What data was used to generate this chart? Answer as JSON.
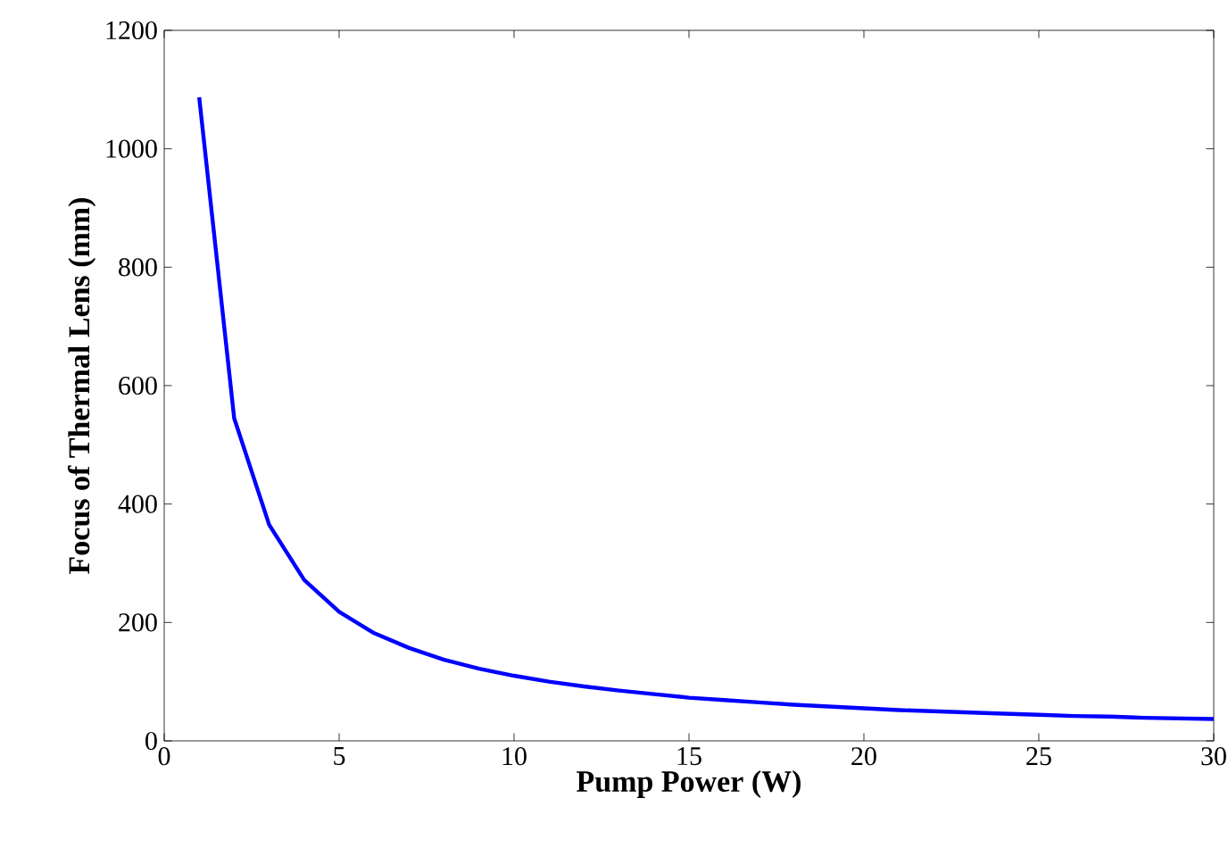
{
  "chart_data": {
    "type": "line",
    "xlabel": "Pump Power (W)",
    "ylabel": "Focus of Thermal Lens (mm)",
    "x": [
      1,
      2,
      3,
      4,
      5,
      6,
      7,
      8,
      9,
      10,
      11,
      12,
      13,
      14,
      15,
      16,
      17,
      18,
      19,
      20,
      21,
      22,
      23,
      24,
      25,
      26,
      27,
      28,
      29,
      30
    ],
    "series": [
      {
        "color": "#0000ff",
        "values": [
          1087,
          545,
          365,
          272,
          218,
          182,
          157,
          137,
          122,
          110,
          100,
          92,
          85,
          79,
          73,
          69,
          65,
          61,
          58,
          55,
          52,
          50,
          48,
          46,
          44,
          42,
          41,
          39,
          38,
          37
        ]
      }
    ],
    "xlim": [
      0,
      30
    ],
    "ylim": [
      0,
      1200
    ],
    "xticks": [
      0,
      5,
      10,
      15,
      20,
      25,
      30
    ],
    "yticks": [
      0,
      200,
      400,
      600,
      800,
      1000,
      1200
    ],
    "grid": false,
    "marker": "none",
    "line_style": "solid"
  }
}
